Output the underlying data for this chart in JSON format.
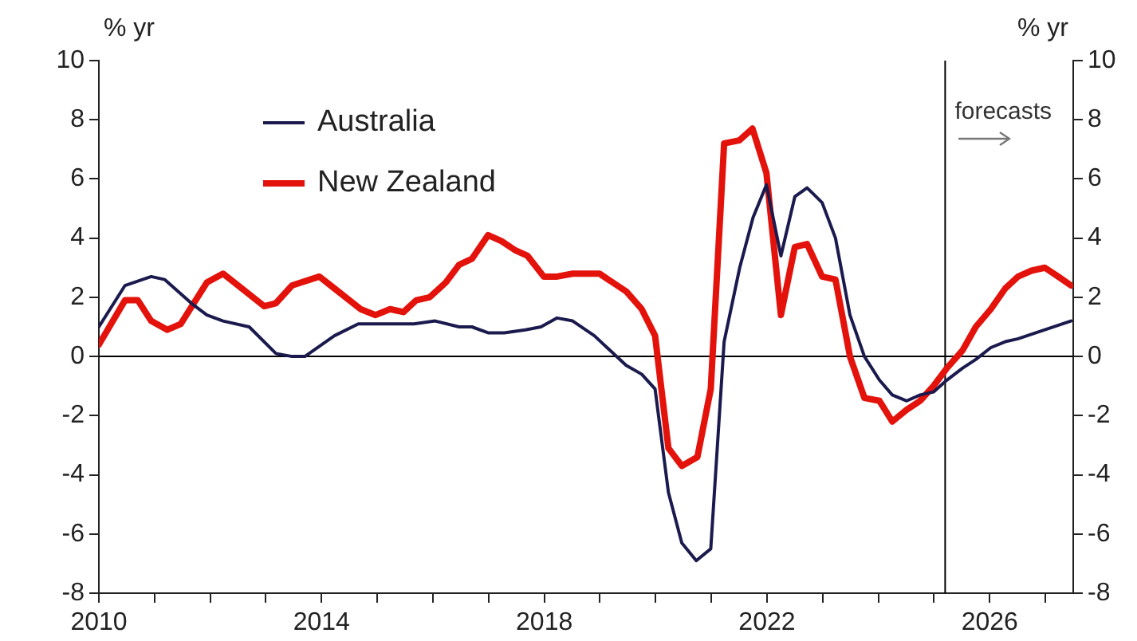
{
  "chart_data": {
    "type": "line",
    "ylabel": "% yr",
    "y2label": "% yr",
    "xlim": [
      2010,
      2027.5
    ],
    "xticks": [
      2010,
      {
        "value": 2011,
        "label": null
      },
      {
        "value": 2012,
        "label": null
      },
      {
        "value": 2013,
        "label": null
      },
      2014,
      {
        "value": 2015,
        "label": null
      },
      {
        "value": 2016,
        "label": null
      },
      {
        "value": 2017,
        "label": null
      },
      2018,
      {
        "value": 2019,
        "label": null
      },
      {
        "value": 2020,
        "label": null
      },
      {
        "value": 2021,
        "label": null
      },
      2022,
      {
        "value": 2023,
        "label": null
      },
      {
        "value": 2024,
        "label": null
      },
      {
        "value": 2025,
        "label": null
      },
      2026,
      {
        "value": 2027,
        "label": null
      }
    ],
    "ylim": [
      -8,
      10
    ],
    "yticks": [
      -8,
      -6,
      -4,
      -2,
      0,
      2,
      4,
      6,
      8,
      10
    ],
    "y2lim": [
      -8,
      10
    ],
    "y2ticks": [
      -8,
      -6,
      -4,
      -2,
      0,
      2,
      4,
      6,
      8,
      10
    ],
    "grid": false,
    "legend": "top left",
    "marker": "none",
    "line_style": "solid",
    "ref_lines": [
      {
        "axis": "y",
        "value": 0,
        "color": "#000000"
      },
      {
        "axis": "x",
        "value": 2025.2,
        "label": "forecasts",
        "color": "#000000"
      }
    ],
    "series": [
      {
        "name": "Australia",
        "color": "#1b1a4e",
        "x": [
          2010.0,
          2010.47,
          2010.94,
          2011.18,
          2011.66,
          2011.94,
          2012.23,
          2012.7,
          2013.18,
          2013.47,
          2013.7,
          2014.23,
          2014.66,
          2015.18,
          2015.66,
          2016.04,
          2016.47,
          2016.7,
          2016.99,
          2017.28,
          2017.66,
          2017.94,
          2018.23,
          2018.51,
          2018.9,
          2019.47,
          2019.75,
          2019.99,
          2020.23,
          2020.47,
          2020.73,
          2020.99,
          2021.23,
          2021.51,
          2021.75,
          2021.99,
          2022.25,
          2022.5,
          2022.72,
          2022.99,
          2023.23,
          2023.49,
          2023.75,
          2024.02,
          2024.25,
          2024.51,
          2024.75,
          2024.99,
          2025.23,
          2025.51,
          2025.75,
          2026.02,
          2026.28,
          2026.51,
          2026.99,
          2027.46
        ],
        "values": [
          1.0,
          2.4,
          2.7,
          2.6,
          1.8,
          1.4,
          1.2,
          1.0,
          0.1,
          0.0,
          0.0,
          0.7,
          1.1,
          1.1,
          1.1,
          1.2,
          1.0,
          1.0,
          0.8,
          0.8,
          0.9,
          1.0,
          1.3,
          1.2,
          0.7,
          -0.3,
          -0.6,
          -1.1,
          -4.6,
          -6.3,
          -6.9,
          -6.5,
          0.5,
          3.0,
          4.7,
          5.8,
          3.4,
          5.4,
          5.7,
          5.2,
          4.0,
          1.4,
          0.0,
          -0.8,
          -1.3,
          -1.5,
          -1.3,
          -1.2,
          -0.8,
          -0.4,
          -0.1,
          0.3,
          0.5,
          0.6,
          0.9,
          1.2
        ]
      },
      {
        "name": "New Zealand",
        "color": "#e3120b",
        "x": [
          2010.0,
          2010.47,
          2010.7,
          2010.94,
          2011.23,
          2011.47,
          2011.94,
          2012.23,
          2012.7,
          2012.97,
          2013.18,
          2013.47,
          2013.96,
          2014.23,
          2014.7,
          2014.97,
          2015.23,
          2015.47,
          2015.7,
          2015.94,
          2016.23,
          2016.47,
          2016.7,
          2016.99,
          2017.23,
          2017.47,
          2017.7,
          2017.99,
          2018.23,
          2018.51,
          2018.99,
          2019.47,
          2019.75,
          2019.99,
          2020.23,
          2020.47,
          2020.75,
          2020.99,
          2021.23,
          2021.5,
          2021.74,
          2021.99,
          2022.25,
          2022.5,
          2022.72,
          2022.99,
          2023.23,
          2023.49,
          2023.75,
          2024.02,
          2024.25,
          2024.51,
          2024.75,
          2024.99,
          2025.23,
          2025.51,
          2025.75,
          2026.02,
          2026.28,
          2026.51,
          2026.75,
          2026.99,
          2027.23,
          2027.46
        ],
        "values": [
          0.4,
          1.9,
          1.9,
          1.2,
          0.9,
          1.1,
          2.5,
          2.8,
          2.1,
          1.7,
          1.8,
          2.4,
          2.7,
          2.3,
          1.6,
          1.4,
          1.6,
          1.5,
          1.9,
          2.0,
          2.5,
          3.1,
          3.3,
          4.1,
          3.9,
          3.6,
          3.4,
          2.7,
          2.7,
          2.8,
          2.8,
          2.2,
          1.6,
          0.7,
          -3.1,
          -3.7,
          -3.4,
          -1.1,
          7.2,
          7.3,
          7.7,
          6.2,
          1.4,
          3.7,
          3.8,
          2.7,
          2.6,
          0.0,
          -1.4,
          -1.5,
          -2.2,
          -1.8,
          -1.5,
          -1.0,
          -0.4,
          0.2,
          1.0,
          1.6,
          2.3,
          2.7,
          2.9,
          3.0,
          2.7,
          2.4
        ]
      }
    ]
  }
}
